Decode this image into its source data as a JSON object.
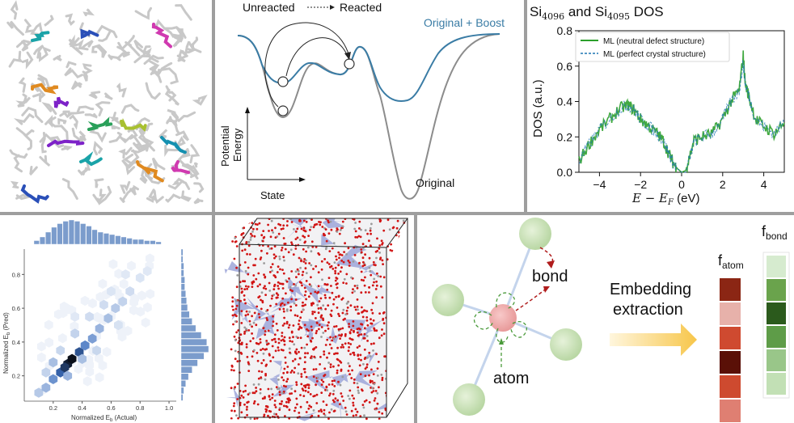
{
  "energy_panel": {
    "unreacted": "Unreacted",
    "reacted": "Reacted",
    "original_boost": "Original + Boost",
    "original": "Original",
    "y_axis": [
      "Potential",
      "Energy"
    ],
    "x_axis": "State",
    "colors": {
      "boost": "#3a7ca5",
      "original": "#8c8c8c"
    }
  },
  "dos_panel": {
    "title_prefix": "Si",
    "title_sub1": "4096",
    "title_mid": " and Si",
    "title_sub2": "4095",
    "title_suffix": " DOS",
    "ylabel": "DOS (a.u.)",
    "xlabel": "E − E",
    "xlabel_sub": "F",
    "xlabel_unit": " (eV)",
    "legend": [
      "ML (neutral defect structure)",
      "ML (perfect crystal structure)"
    ],
    "colors": {
      "neutral": "#2ca02c",
      "perfect": "#1f77b4"
    }
  },
  "parity_panel": {
    "xlabel": "Normalized E",
    "xlabel_sub": "b",
    "xlabel_suffix": " (Actual)",
    "ylabel": "Normalized E",
    "ylabel_sub": "b",
    "ylabel_suffix": " (Pred)"
  },
  "embedding_panel": {
    "bond": "bond",
    "atom": "atom",
    "arrow_text": [
      "Embedding",
      "extraction"
    ],
    "f": "f",
    "f_atom_sub": "atom",
    "f_bond_sub": "bond",
    "f_atom_colors": [
      "#8b2614",
      "#e7b1aa",
      "#cf4a30",
      "#5a1007",
      "#ce4a2f",
      "#df7f72"
    ],
    "f_bond_colors": [
      "#d6ebcf",
      "#6aa34c",
      "#2b5a1c",
      "#5e9c48",
      "#99c689",
      "#c2e0b5"
    ]
  },
  "chart_data": [
    {
      "type": "line",
      "title": "Si4096 and Si4095 DOS",
      "xlabel": "E − E_F (eV)",
      "ylabel": "DOS (a.u.)",
      "xlim": [
        -5,
        5
      ],
      "ylim": [
        0,
        0.8
      ],
      "x_ticks": [
        -4,
        -2,
        0,
        2,
        4
      ],
      "y_ticks": [
        0.0,
        0.2,
        0.4,
        0.6,
        0.8
      ],
      "legend_position": "top-right",
      "series": [
        {
          "name": "ML (neutral defect structure)",
          "x": [
            -5.0,
            -4.5,
            -4.0,
            -3.5,
            -3.0,
            -2.6,
            -2.3,
            -2.0,
            -1.6,
            -1.2,
            -0.9,
            -0.6,
            -0.4,
            -0.2,
            0.0,
            0.2,
            0.3,
            0.6,
            1.0,
            1.5,
            2.0,
            2.4,
            2.8,
            3.0,
            3.1,
            3.3,
            3.6,
            4.0,
            4.5,
            5.0
          ],
          "values": [
            0.06,
            0.16,
            0.24,
            0.3,
            0.36,
            0.38,
            0.35,
            0.3,
            0.26,
            0.22,
            0.18,
            0.1,
            0.05,
            0.02,
            0.0,
            0.01,
            0.05,
            0.18,
            0.2,
            0.22,
            0.3,
            0.4,
            0.46,
            0.66,
            0.5,
            0.42,
            0.3,
            0.26,
            0.22,
            0.28
          ]
        },
        {
          "name": "ML (perfect crystal structure)",
          "x": [
            -5.0,
            -4.5,
            -4.0,
            -3.5,
            -3.0,
            -2.6,
            -2.3,
            -2.0,
            -1.6,
            -1.2,
            -0.9,
            -0.6,
            -0.4,
            -0.2,
            0.0,
            0.2,
            0.3,
            0.6,
            1.0,
            1.5,
            2.0,
            2.4,
            2.8,
            3.0,
            3.1,
            3.3,
            3.6,
            4.0,
            4.5,
            5.0
          ],
          "values": [
            0.06,
            0.16,
            0.24,
            0.3,
            0.36,
            0.38,
            0.35,
            0.3,
            0.26,
            0.22,
            0.18,
            0.1,
            0.05,
            0.02,
            0.0,
            0.0,
            0.04,
            0.17,
            0.2,
            0.22,
            0.3,
            0.4,
            0.46,
            0.62,
            0.5,
            0.42,
            0.3,
            0.26,
            0.22,
            0.28
          ]
        }
      ]
    },
    {
      "type": "heatmap",
      "xlabel": "Normalized E_b (Actual)",
      "ylabel": "Normalized E_b (Pred)",
      "xlim": [
        0,
        1.05
      ],
      "ylim": [
        0.05,
        0.95
      ],
      "x_ticks": [
        0.2,
        0.4,
        0.6,
        0.8,
        1.0
      ],
      "y_ticks": [
        0.2,
        0.4,
        0.6,
        0.8
      ],
      "cells": [
        {
          "x": 0.1,
          "y": 0.1,
          "v": 0.25
        },
        {
          "x": 0.15,
          "y": 0.13,
          "v": 0.35
        },
        {
          "x": 0.2,
          "y": 0.18,
          "v": 0.5
        },
        {
          "x": 0.25,
          "y": 0.22,
          "v": 0.7
        },
        {
          "x": 0.3,
          "y": 0.27,
          "v": 0.95
        },
        {
          "x": 0.33,
          "y": 0.3,
          "v": 1.0
        },
        {
          "x": 0.28,
          "y": 0.25,
          "v": 0.85
        },
        {
          "x": 0.38,
          "y": 0.34,
          "v": 0.75
        },
        {
          "x": 0.42,
          "y": 0.38,
          "v": 0.55
        },
        {
          "x": 0.47,
          "y": 0.42,
          "v": 0.45
        },
        {
          "x": 0.52,
          "y": 0.48,
          "v": 0.35
        },
        {
          "x": 0.58,
          "y": 0.54,
          "v": 0.3
        },
        {
          "x": 0.63,
          "y": 0.6,
          "v": 0.25
        },
        {
          "x": 0.68,
          "y": 0.64,
          "v": 0.2
        },
        {
          "x": 0.73,
          "y": 0.7,
          "v": 0.15
        },
        {
          "x": 0.2,
          "y": 0.28,
          "v": 0.3
        },
        {
          "x": 0.3,
          "y": 0.2,
          "v": 0.35
        },
        {
          "x": 0.4,
          "y": 0.3,
          "v": 0.3
        },
        {
          "x": 0.35,
          "y": 0.45,
          "v": 0.2
        },
        {
          "x": 0.5,
          "y": 0.35,
          "v": 0.18
        },
        {
          "x": 0.55,
          "y": 0.62,
          "v": 0.15
        },
        {
          "x": 0.25,
          "y": 0.35,
          "v": 0.18
        },
        {
          "x": 0.45,
          "y": 0.55,
          "v": 0.15
        },
        {
          "x": 0.65,
          "y": 0.5,
          "v": 0.12
        },
        {
          "x": 0.8,
          "y": 0.78,
          "v": 0.1
        },
        {
          "x": 0.85,
          "y": 0.82,
          "v": 0.08
        },
        {
          "x": 0.15,
          "y": 0.22,
          "v": 0.2
        },
        {
          "x": 0.6,
          "y": 0.7,
          "v": 0.1
        },
        {
          "x": 0.7,
          "y": 0.8,
          "v": 0.08
        },
        {
          "x": 0.35,
          "y": 0.55,
          "v": 0.08
        }
      ],
      "top_histogram": [
        3,
        6,
        10,
        14,
        17,
        19,
        20,
        19,
        17,
        15,
        12,
        10,
        9,
        8,
        7,
        6,
        5,
        4,
        4,
        3,
        3,
        2
      ],
      "right_histogram": [
        2,
        3,
        5,
        8,
        12,
        18,
        25,
        30,
        28,
        22,
        16,
        12,
        9,
        7,
        6,
        5,
        4,
        4,
        3,
        3,
        2,
        2
      ]
    }
  ]
}
